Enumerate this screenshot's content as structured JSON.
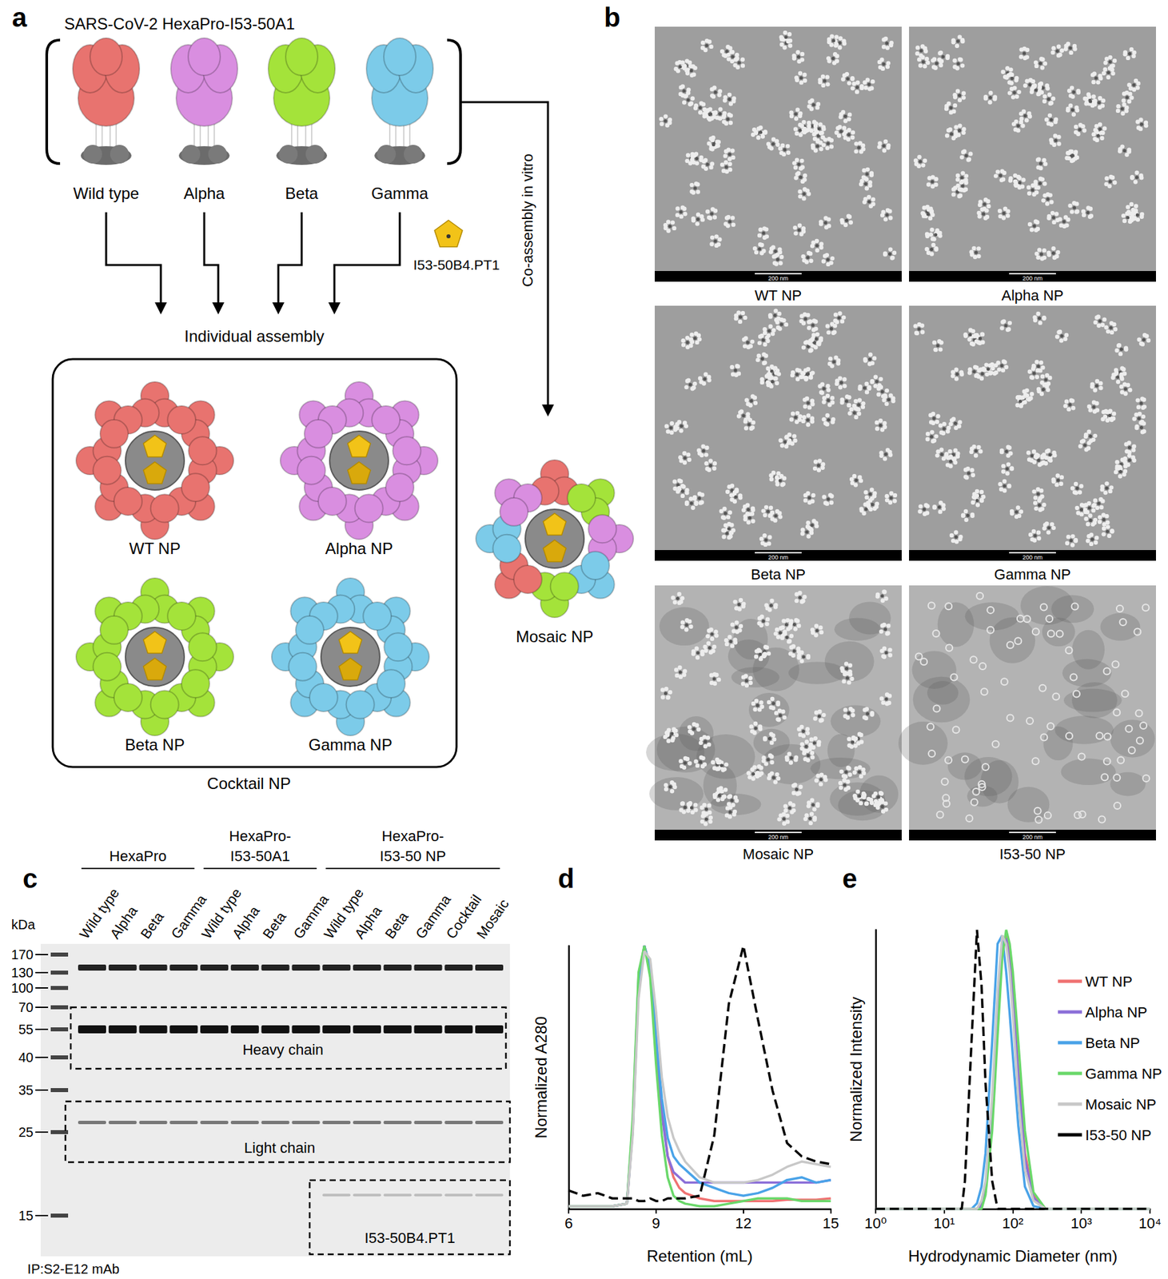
{
  "panel_labels": [
    "a",
    "b",
    "c",
    "d",
    "e"
  ],
  "panel_a": {
    "title": "SARS-CoV-2 HexaPro-I53-50A1",
    "variants": [
      {
        "name": "Wild type",
        "np": "WT NP",
        "color": "#e8736f"
      },
      {
        "name": "Alpha",
        "np": "Alpha NP",
        "color": "#d98ee0"
      },
      {
        "name": "Beta",
        "np": "Beta NP",
        "color": "#a4e33a"
      },
      {
        "name": "Gamma",
        "np": "Gamma NP",
        "color": "#7ccbe9"
      }
    ],
    "component": "I53-50B4.PT1",
    "individual": "Individual assembly",
    "coassembly": "Co-assembly in vitro",
    "cocktail": "Cocktail NP",
    "mosaic": "Mosaic NP"
  },
  "panel_b": {
    "scale_bar": "200 nm",
    "images": [
      "WT NP",
      "Alpha NP",
      "Beta NP",
      "Gamma NP",
      "Mosaic NP",
      "I53-50 NP"
    ]
  },
  "panel_c": {
    "unit": "kDa",
    "ladder": [
      170,
      130,
      100,
      70,
      55,
      40,
      35,
      25,
      15
    ],
    "groups": [
      {
        "label": [
          "HexaPro"
        ],
        "lanes": 4
      },
      {
        "label": [
          "HexaPro-",
          "I53-50A1"
        ],
        "lanes": 4
      },
      {
        "label": [
          "HexaPro-",
          "I53-50 NP"
        ],
        "lanes": 6
      }
    ],
    "lanes": [
      {
        "label": "Wild type",
        "bands": [
          140,
          55,
          27
        ]
      },
      {
        "label": "Alpha",
        "bands": [
          140,
          55,
          27
        ]
      },
      {
        "label": "Beta",
        "bands": [
          140,
          55,
          27
        ]
      },
      {
        "label": "Gamma",
        "bands": [
          140,
          55,
          27
        ]
      },
      {
        "label": "Wild type",
        "bands": [
          140,
          55,
          27
        ]
      },
      {
        "label": "Alpha",
        "bands": [
          140,
          55,
          27
        ]
      },
      {
        "label": "Beta",
        "bands": [
          140,
          55,
          27
        ]
      },
      {
        "label": "Gamma",
        "bands": [
          140,
          55,
          27
        ]
      },
      {
        "label": "Wild type",
        "bands": [
          140,
          55,
          27,
          17
        ]
      },
      {
        "label": "Alpha",
        "bands": [
          140,
          55,
          27,
          17
        ]
      },
      {
        "label": "Beta",
        "bands": [
          140,
          55,
          27,
          17
        ]
      },
      {
        "label": "Gamma",
        "bands": [
          140,
          55,
          27,
          17
        ]
      },
      {
        "label": "Cocktail",
        "bands": [
          140,
          55,
          27,
          17
        ]
      },
      {
        "label": "Mosaic",
        "bands": [
          140,
          55,
          27,
          17
        ]
      }
    ],
    "boxes": [
      "Heavy chain",
      "Light chain",
      "I53-50B4.PT1"
    ],
    "footer": "IP:S2-E12 mAb"
  },
  "chart_data": [
    {
      "type": "line",
      "x_label": "Retention (mL)",
      "y_label": "Normalized A280",
      "x": [
        6,
        6.5,
        7,
        7.5,
        8,
        8.2,
        8.4,
        8.6,
        8.8,
        9,
        9.2,
        9.4,
        9.6,
        9.8,
        10,
        10.5,
        11,
        11.5,
        12,
        12.5,
        13,
        13.5,
        14,
        14.5,
        15
      ],
      "series": [
        {
          "color": "#f07272",
          "line_style": "solid",
          "values": [
            0.01,
            0.01,
            0.01,
            0.01,
            0.02,
            0.3,
            0.85,
            1.0,
            0.92,
            0.65,
            0.38,
            0.2,
            0.12,
            0.08,
            0.06,
            0.04,
            0.03,
            0.03,
            0.03,
            0.03,
            0.03,
            0.035,
            0.035,
            0.035,
            0.04
          ]
        },
        {
          "color": "#8b6fd8",
          "line_style": "solid",
          "values": [
            0.01,
            0.01,
            0.01,
            0.01,
            0.02,
            0.32,
            0.88,
            1.0,
            0.9,
            0.62,
            0.36,
            0.2,
            0.14,
            0.12,
            0.1,
            0.1,
            0.1,
            0.1,
            0.1,
            0.1,
            0.1,
            0.1,
            0.1,
            0.1,
            0.11
          ]
        },
        {
          "color": "#4aa3e8",
          "line_style": "solid",
          "values": [
            0.01,
            0.01,
            0.01,
            0.01,
            0.02,
            0.3,
            0.85,
            1.0,
            0.92,
            0.66,
            0.42,
            0.27,
            0.2,
            0.17,
            0.15,
            0.1,
            0.08,
            0.06,
            0.05,
            0.06,
            0.08,
            0.11,
            0.12,
            0.1,
            0.11
          ]
        },
        {
          "color": "#6ad86a",
          "line_style": "solid",
          "values": [
            0.01,
            0.01,
            0.01,
            0.01,
            0.02,
            0.35,
            0.9,
            1.0,
            0.88,
            0.55,
            0.28,
            0.12,
            0.05,
            0.03,
            0.02,
            0.01,
            0.01,
            0.02,
            0.03,
            0.04,
            0.04,
            0.04,
            0.03,
            0.03,
            0.03
          ]
        },
        {
          "color": "#c8c8c8",
          "line_style": "solid",
          "values": [
            0.01,
            0.01,
            0.01,
            0.01,
            0.02,
            0.28,
            0.8,
            0.98,
            0.95,
            0.75,
            0.5,
            0.35,
            0.27,
            0.22,
            0.18,
            0.12,
            0.1,
            0.1,
            0.1,
            0.11,
            0.13,
            0.16,
            0.18,
            0.17,
            0.16
          ]
        },
        {
          "color": "#000000",
          "line_style": "dashed",
          "values": [
            0.07,
            0.05,
            0.06,
            0.04,
            0.04,
            0.04,
            0.03,
            0.03,
            0.04,
            0.03,
            0.03,
            0.04,
            0.04,
            0.04,
            0.04,
            0.05,
            0.28,
            0.78,
            1.0,
            0.72,
            0.45,
            0.25,
            0.2,
            0.18,
            0.17
          ]
        }
      ],
      "xlim": [
        6,
        15
      ],
      "xticks": [
        6,
        9,
        12,
        15
      ],
      "ylim": [
        0,
        1
      ],
      "yticks": [],
      "tick_labels": "x",
      "grid": false
    },
    {
      "type": "line",
      "x_label": "Hydrodynamic Diameter (nm)",
      "y_label": "Normalized Intensity",
      "x": [
        1,
        10,
        15,
        18,
        20,
        25,
        30,
        35,
        40,
        50,
        60,
        70,
        80,
        90,
        100,
        120,
        150,
        200,
        300,
        1000,
        10000
      ],
      "series": [
        {
          "name": "WT NP",
          "color": "#f07272",
          "line_style": "solid",
          "values": [
            0,
            0,
            0,
            0,
            0,
            0,
            0,
            0.02,
            0.08,
            0.35,
            0.7,
            0.95,
            0.98,
            0.9,
            0.78,
            0.5,
            0.2,
            0.05,
            0,
            0,
            0
          ]
        },
        {
          "name": "Alpha NP",
          "color": "#8b6fd8",
          "line_style": "solid",
          "values": [
            0,
            0,
            0,
            0,
            0,
            0,
            0,
            0.01,
            0.06,
            0.32,
            0.68,
            0.95,
            0.97,
            0.88,
            0.75,
            0.48,
            0.18,
            0.04,
            0,
            0,
            0
          ]
        },
        {
          "name": "Beta NP",
          "color": "#4aa3e8",
          "line_style": "solid",
          "values": [
            0,
            0,
            0,
            0,
            0,
            0,
            0.02,
            0.08,
            0.2,
            0.6,
            0.95,
            0.98,
            0.85,
            0.7,
            0.55,
            0.3,
            0.08,
            0.01,
            0,
            0,
            0
          ]
        },
        {
          "name": "Gamma NP",
          "color": "#6ad86a",
          "line_style": "solid",
          "values": [
            0,
            0,
            0,
            0,
            0,
            0,
            0,
            0,
            0.05,
            0.28,
            0.62,
            0.9,
            1.0,
            0.95,
            0.85,
            0.6,
            0.28,
            0.06,
            0,
            0,
            0
          ]
        },
        {
          "name": "Mosaic NP",
          "color": "#c8c8c8",
          "line_style": "solid",
          "values": [
            0,
            0,
            0,
            0,
            0,
            0,
            0,
            0.03,
            0.1,
            0.4,
            0.78,
            0.98,
            0.95,
            0.85,
            0.7,
            0.4,
            0.14,
            0.03,
            0,
            0,
            0
          ]
        },
        {
          "name": "I53-50 NP",
          "color": "#000000",
          "line_style": "dashed",
          "values": [
            0,
            0,
            0,
            0,
            0.1,
            0.6,
            1.0,
            0.8,
            0.45,
            0.1,
            0,
            0,
            0,
            0,
            0,
            0,
            0,
            0,
            0,
            0,
            0
          ]
        }
      ],
      "log": "x",
      "xlim": [
        1,
        10000
      ],
      "xticks": [
        {
          "value": 1,
          "label": "10⁰"
        },
        {
          "value": 10,
          "label": "10¹"
        },
        {
          "value": 100,
          "label": "10²"
        },
        {
          "value": 1000,
          "label": "10³"
        },
        {
          "value": 10000,
          "label": "10⁴"
        }
      ],
      "ylim": [
        0,
        1
      ],
      "yticks": [],
      "tick_labels": "x",
      "legend": "upper right",
      "grid": false
    }
  ]
}
